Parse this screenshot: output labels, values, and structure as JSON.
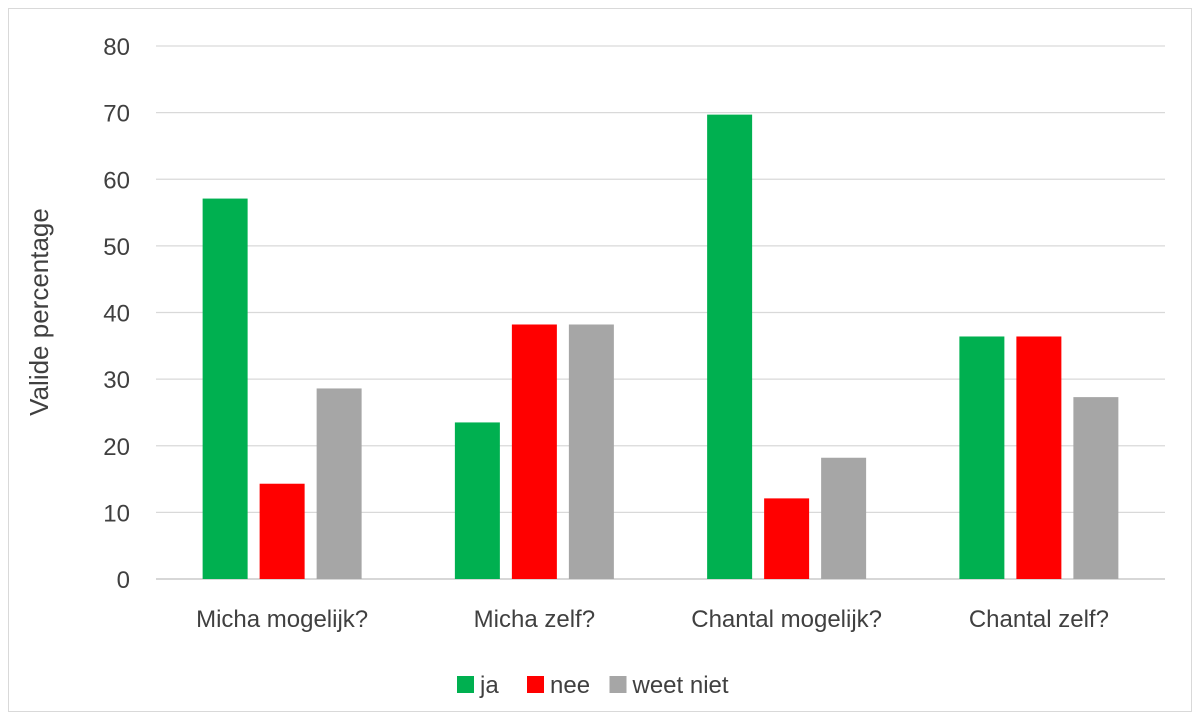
{
  "chart_data": {
    "type": "bar",
    "title": "",
    "xlabel": "",
    "ylabel": "Valide percentage",
    "ylim": [
      0,
      80
    ],
    "yticks": [
      0,
      10,
      20,
      30,
      40,
      50,
      60,
      70,
      80
    ],
    "grid": true,
    "legend_position": "bottom",
    "categories": [
      "Micha mogelijk?",
      "Micha zelf?",
      "Chantal mogelijk?",
      "Chantal zelf?"
    ],
    "series": [
      {
        "name": "ja",
        "color": "#00b050",
        "values": [
          57.1,
          23.5,
          69.7,
          36.4
        ]
      },
      {
        "name": "nee",
        "color": "#ff0000",
        "values": [
          14.3,
          38.2,
          12.1,
          36.4
        ]
      },
      {
        "name": "weet niet",
        "color": "#a6a6a6",
        "values": [
          28.6,
          38.2,
          18.2,
          27.3
        ]
      }
    ]
  }
}
